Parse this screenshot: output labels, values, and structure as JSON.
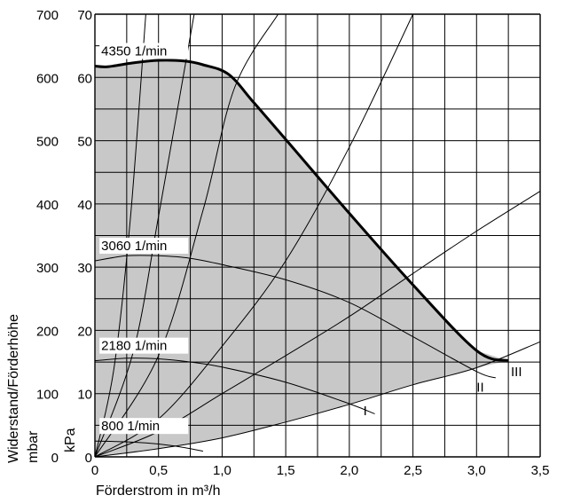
{
  "chart_data": {
    "type": "line",
    "title": "",
    "xlabel": "Förderstrom in m³/h",
    "ylabel_mbar": "Widerstand/Förderhöhe",
    "ylabel_mbar_unit": "mbar",
    "ylabel_kpa": "kPa",
    "xlim": [
      0,
      3.5
    ],
    "ylim_mbar": [
      0,
      700
    ],
    "ylim_kpa": [
      0,
      70
    ],
    "grid": true,
    "x_ticks": [
      {
        "v": 0,
        "label": "0"
      },
      {
        "v": 0.5,
        "label": "0,5"
      },
      {
        "v": 1.0,
        "label": "1,0"
      },
      {
        "v": 1.5,
        "label": "1,5"
      },
      {
        "v": 2.0,
        "label": "2,0"
      },
      {
        "v": 2.5,
        "label": "2,5"
      },
      {
        "v": 3.0,
        "label": "3,0"
      },
      {
        "v": 3.5,
        "label": "3,5"
      }
    ],
    "y_ticks_mbar": [
      {
        "v": 0,
        "label": "0"
      },
      {
        "v": 100,
        "label": "100"
      },
      {
        "v": 200,
        "label": "200"
      },
      {
        "v": 300,
        "label": "300"
      },
      {
        "v": 400,
        "label": "400"
      },
      {
        "v": 500,
        "label": "500"
      },
      {
        "v": 600,
        "label": "600"
      },
      {
        "v": 700,
        "label": "700"
      }
    ],
    "y_ticks_kpa": [
      {
        "v": 0,
        "label": "0"
      },
      {
        "v": 100,
        "label": "10"
      },
      {
        "v": 200,
        "label": "20"
      },
      {
        "v": 300,
        "label": "30"
      },
      {
        "v": 400,
        "label": "40"
      },
      {
        "v": 500,
        "label": "50"
      },
      {
        "v": 600,
        "label": "60"
      },
      {
        "v": 700,
        "label": "70"
      }
    ],
    "working_area_color": "#c8c8c8",
    "pump_curves": [
      {
        "name": "4350 1/min",
        "bold": true,
        "points": [
          [
            0,
            618
          ],
          [
            0.1,
            617
          ],
          [
            0.3,
            623
          ],
          [
            0.5,
            627
          ],
          [
            0.7,
            626
          ],
          [
            0.85,
            620
          ],
          [
            1.05,
            605
          ],
          [
            1.25,
            560
          ],
          [
            1.5,
            502
          ],
          [
            2.0,
            385
          ],
          [
            2.5,
            272
          ],
          [
            3.0,
            168
          ],
          [
            3.25,
            152
          ]
        ]
      },
      {
        "name": "3060 1/min",
        "bold": false,
        "points": [
          [
            0,
            310
          ],
          [
            0.25,
            318
          ],
          [
            0.5,
            318
          ],
          [
            0.75,
            314
          ],
          [
            1.0,
            304
          ],
          [
            1.5,
            280
          ],
          [
            2.0,
            244
          ],
          [
            2.5,
            190
          ],
          [
            3.0,
            135
          ],
          [
            3.15,
            125
          ]
        ]
      },
      {
        "name": "2180 1/min",
        "bold": false,
        "points": [
          [
            0,
            152
          ],
          [
            0.25,
            156
          ],
          [
            0.5,
            155
          ],
          [
            0.75,
            150
          ],
          [
            1.0,
            142
          ],
          [
            1.5,
            118
          ],
          [
            2.0,
            84
          ],
          [
            2.2,
            68
          ]
        ]
      },
      {
        "name": "800 1/min",
        "bold": false,
        "points": [
          [
            0,
            25
          ],
          [
            0.2,
            24
          ],
          [
            0.4,
            22
          ],
          [
            0.6,
            18
          ],
          [
            0.75,
            13
          ],
          [
            0.85,
            9
          ]
        ]
      }
    ],
    "system_curves": [
      {
        "name": "I",
        "points": [
          [
            0,
            0
          ],
          [
            0.5,
            13
          ],
          [
            1.0,
            30
          ],
          [
            1.5,
            55
          ],
          [
            2.0,
            83
          ],
          [
            2.5,
            114
          ],
          [
            3.0,
            141
          ],
          [
            3.5,
            182
          ]
        ]
      },
      {
        "name": "II",
        "points": [
          [
            0,
            0
          ],
          [
            0.5,
            40
          ],
          [
            1.0,
            100
          ],
          [
            1.5,
            160
          ],
          [
            2.0,
            222
          ],
          [
            2.5,
            290
          ],
          [
            3.0,
            357
          ],
          [
            3.5,
            420
          ]
        ]
      },
      {
        "name": "III",
        "points": [
          [
            0,
            0
          ],
          [
            0.5,
            60
          ],
          [
            1.0,
            175
          ],
          [
            1.5,
            310
          ],
          [
            2.0,
            490
          ],
          [
            2.5,
            700
          ]
        ]
      },
      {
        "name": "",
        "points": [
          [
            0,
            0
          ],
          [
            0.5,
            160
          ],
          [
            0.85,
            390
          ],
          [
            1.1,
            585
          ],
          [
            1.44,
            700
          ]
        ]
      },
      {
        "name": "",
        "points": [
          [
            0,
            0
          ],
          [
            0.3,
            165
          ],
          [
            0.5,
            380
          ],
          [
            0.78,
            700
          ]
        ]
      },
      {
        "name": "",
        "points": [
          [
            0,
            0
          ],
          [
            0.15,
            140
          ],
          [
            0.28,
            380
          ],
          [
            0.4,
            700
          ]
        ]
      }
    ],
    "curve_labels": [
      "I",
      "II",
      "III"
    ]
  }
}
